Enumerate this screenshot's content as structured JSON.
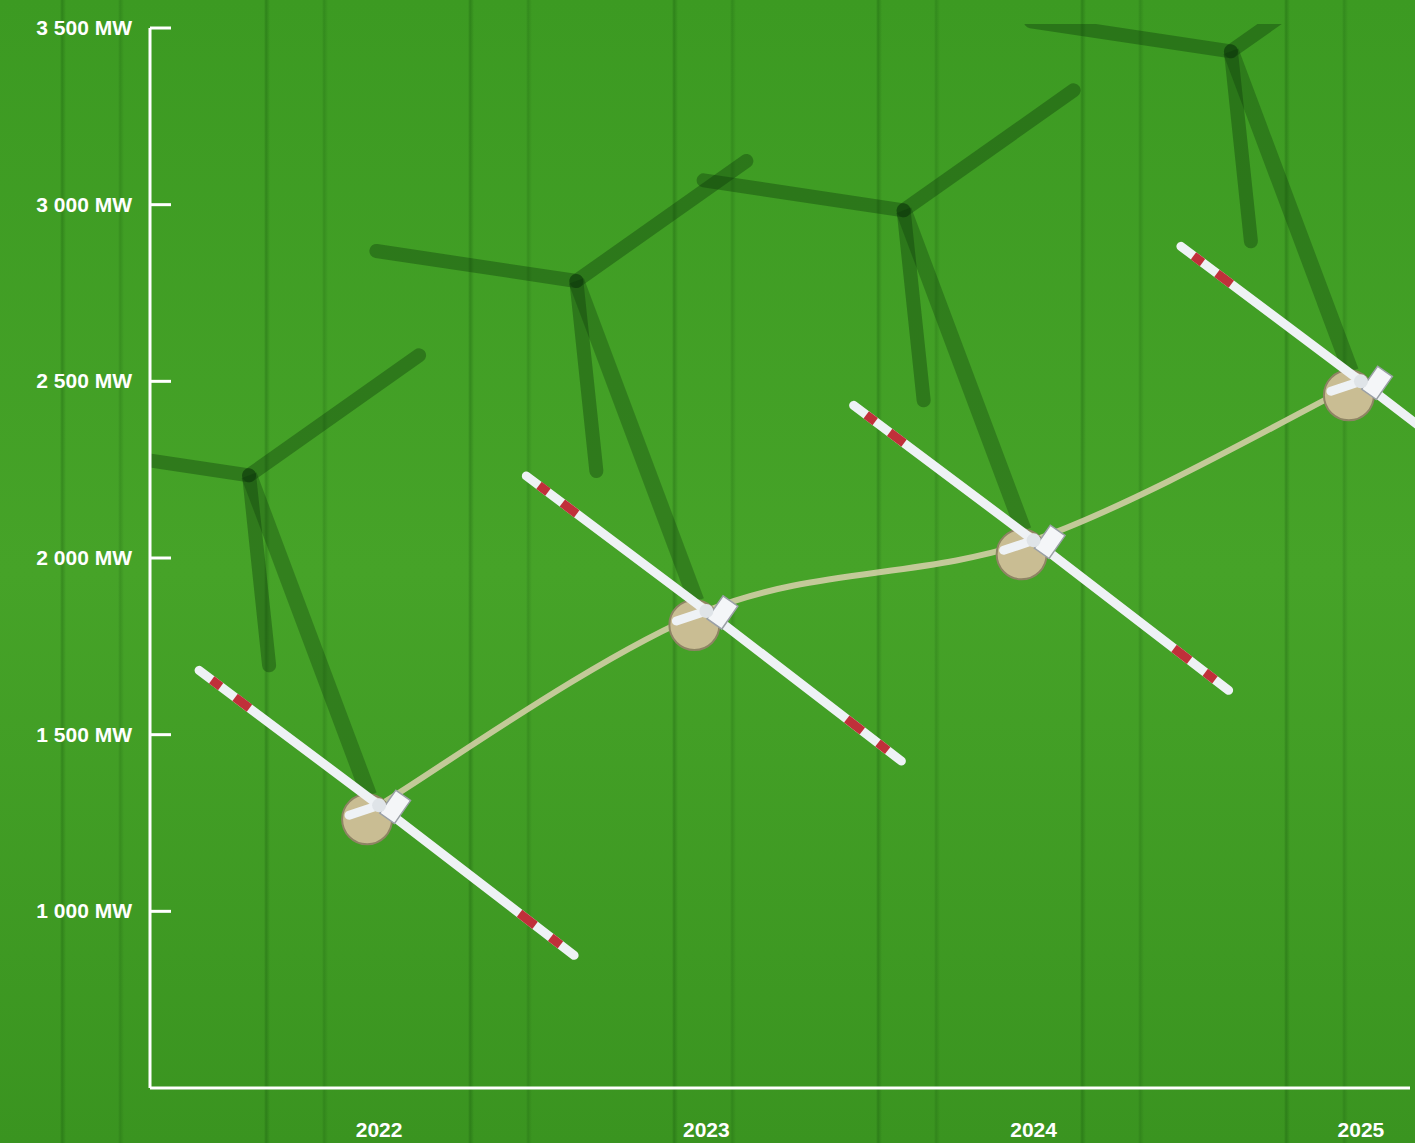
{
  "chart_data": {
    "type": "line",
    "x": [
      2022,
      2023,
      2024,
      2025
    ],
    "values": [
      1300,
      1850,
      2050,
      2500
    ],
    "color": "#d9d1ad",
    "marker": "turbine",
    "xlim": [
      2021.3,
      2025.15
    ],
    "xticks": [
      2022,
      2023,
      2024,
      2025
    ],
    "ylim": [
      500,
      3500
    ],
    "yticks": [
      {
        "value": 1000,
        "label": "1 000 MW"
      },
      {
        "value": 1500,
        "label": "1 500 MW"
      },
      {
        "value": 2000,
        "label": "2 000 MW"
      },
      {
        "value": 2500,
        "label": "2 500 MW"
      },
      {
        "value": 3000,
        "label": "3 000 MW"
      },
      {
        "value": 3500,
        "label": "3 500 MW"
      }
    ],
    "grid": false
  }
}
